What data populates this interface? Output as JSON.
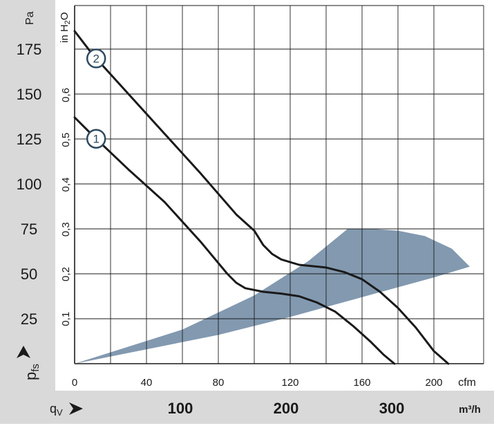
{
  "chart_data": {
    "type": "line",
    "x_axis_cfm": {
      "unit": "cfm",
      "ticks": [
        "0",
        "40",
        "80",
        "120",
        "160",
        "200"
      ],
      "range": [
        0,
        230
      ]
    },
    "x_axis_m3h": {
      "unit": "m³/h",
      "label": "qV",
      "ticks": [
        "100",
        "200",
        "300"
      ],
      "tick_values": [
        100,
        200,
        300
      ]
    },
    "y_axis_pa": {
      "unit": "Pa",
      "label": "pfs",
      "ticks": [
        "25",
        "50",
        "75",
        "100",
        "125",
        "150",
        "175"
      ],
      "range": [
        0,
        190
      ]
    },
    "y_axis_inh2o": {
      "unit": "in H2O",
      "ticks": [
        "0,1",
        "0,2",
        "0,3",
        "0,4",
        "0,5",
        "0,6"
      ],
      "tick_values": [
        0.1,
        0.2,
        0.3,
        0.4,
        0.5,
        0.6
      ]
    },
    "grid": true,
    "series": [
      {
        "name": "1",
        "x_cfm": [
          0,
          10,
          30,
          50,
          70,
          85,
          90,
          95,
          105,
          115,
          125,
          135,
          145,
          155,
          165,
          172,
          178
        ],
        "y_pa": [
          137,
          127,
          108,
          90,
          68,
          50,
          45,
          42,
          40,
          39,
          37.5,
          34,
          29,
          21,
          12,
          5,
          0
        ]
      },
      {
        "name": "2",
        "x_cfm": [
          0,
          10,
          30,
          50,
          70,
          90,
          100,
          105,
          110,
          115,
          125,
          140,
          150,
          160,
          170,
          180,
          190,
          200,
          208
        ],
        "y_pa": [
          185,
          172,
          150,
          128,
          106,
          83,
          74,
          66,
          61,
          58,
          55,
          53.5,
          51,
          47,
          40,
          31,
          20,
          7,
          0
        ]
      }
    ],
    "operating_range": {
      "lower_x_cfm": [
        0,
        40,
        80,
        120,
        160,
        200,
        220
      ],
      "lower_y_pa": [
        0,
        8,
        16,
        26,
        37,
        48,
        54
      ],
      "upper_x_cfm": [
        220,
        210,
        195,
        180,
        165,
        152,
        130,
        100,
        60,
        0
      ],
      "upper_y_pa": [
        54,
        64,
        71,
        74,
        75,
        75,
        57,
        38,
        19,
        0
      ],
      "color": "#8299b0"
    },
    "marker_labels": [
      "2",
      "1"
    ]
  },
  "colors": {
    "panel": "#d9d9d9",
    "curve": "#1a1a1a",
    "marker_stroke": "#2e4a60",
    "grid": "#1a1a1a"
  }
}
